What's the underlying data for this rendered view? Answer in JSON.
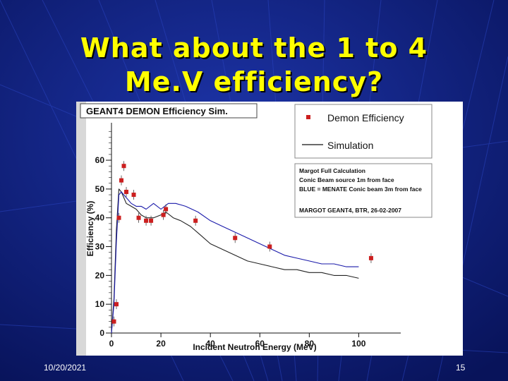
{
  "slide": {
    "title_line1": "What about the 1 to 4",
    "title_line2": "Me.V efficiency?",
    "date": "10/20/2021",
    "page_number": "15"
  },
  "colors": {
    "background": "#0b1a6e",
    "title": "#ffff00",
    "marker": "#cc1f1f",
    "simulation_1m": "#222222",
    "simulation_3m": "#1a1aaa"
  },
  "chart_data": {
    "type": "scatter",
    "title": "GEANT4 DEMON Efficiency Sim.",
    "xlabel": "Incident Neutron Energy (MeV)",
    "ylabel": "Efficiency (%)",
    "xlim": [
      0,
      117
    ],
    "ylim": [
      0,
      73
    ],
    "x_ticks": [
      0,
      20,
      40,
      60,
      80,
      100
    ],
    "y_ticks": [
      0,
      10,
      20,
      30,
      40,
      50,
      60
    ],
    "legend": [
      {
        "label": "Demon Efficiency",
        "style": "marker"
      },
      {
        "label": "Simulation",
        "style": "line"
      }
    ],
    "annotation": {
      "lines": [
        "Margot Full Calculation",
        "Conic Beam source 1m from face",
        "BLUE = MENATE Conic beam 3m from face"
      ],
      "footer": "MARGOT GEANT4, BTR, 26-02-2007"
    },
    "series": [
      {
        "name": "Demon Efficiency",
        "type": "scatter",
        "x": [
          1,
          2,
          3,
          4,
          5,
          6,
          9,
          11,
          14,
          16,
          21,
          22,
          34,
          50,
          64,
          105
        ],
        "y": [
          4,
          10,
          40,
          53,
          58,
          49,
          48,
          40,
          39,
          39,
          41,
          43,
          39,
          33,
          30,
          26
        ]
      },
      {
        "name": "Simulation (1m, Margot)",
        "type": "line",
        "x": [
          0,
          1,
          2,
          3,
          4,
          5,
          6,
          8,
          10,
          12,
          14,
          17,
          20,
          22,
          25,
          28,
          32,
          36,
          40,
          45,
          50,
          55,
          60,
          65,
          70,
          75,
          80,
          85,
          90,
          95,
          100
        ],
        "y": [
          0,
          12,
          36,
          50,
          49,
          47,
          45,
          44,
          43,
          41,
          40,
          40,
          41,
          42,
          40,
          39,
          37,
          34,
          31,
          29,
          27,
          25,
          24,
          23,
          22,
          22,
          21,
          21,
          20,
          20,
          19
        ]
      },
      {
        "name": "MENATE (3m, blue)",
        "type": "line",
        "x": [
          0,
          1,
          2,
          3,
          4,
          5,
          6,
          8,
          10,
          12,
          14,
          17,
          20,
          23,
          26,
          30,
          35,
          40,
          45,
          50,
          55,
          60,
          65,
          70,
          75,
          80,
          85,
          90,
          95,
          100
        ],
        "y": [
          0,
          10,
          32,
          48,
          49,
          48,
          47,
          45,
          44,
          44,
          43,
          45,
          43,
          45,
          45,
          44,
          42,
          39,
          37,
          35,
          33,
          31,
          29,
          27,
          26,
          25,
          24,
          24,
          23,
          23
        ]
      }
    ]
  }
}
